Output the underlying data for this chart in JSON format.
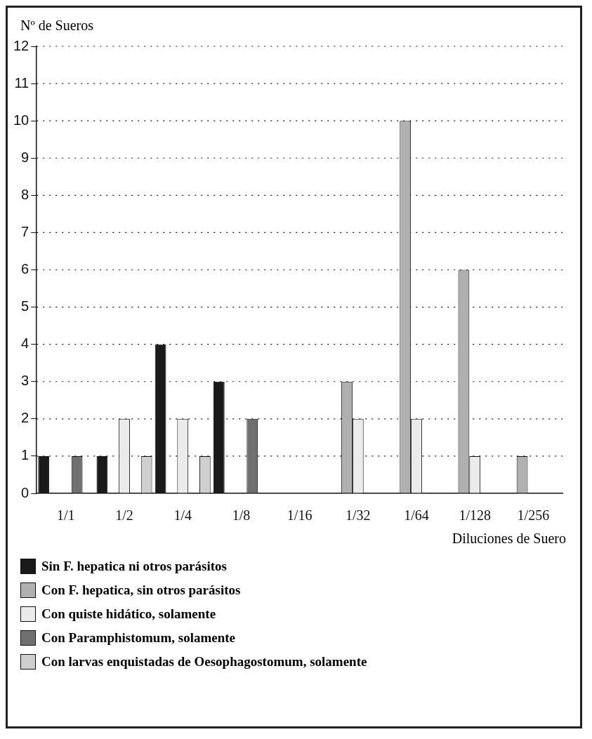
{
  "chart_data": {
    "type": "bar",
    "ylabel": "Nº de Sueros",
    "xlabel": "Diluciones de Suero",
    "categories": [
      "1/1",
      "1/2",
      "1/4",
      "1/8",
      "1/16",
      "1/32",
      "1/64",
      "1/128",
      "1/256"
    ],
    "series": [
      {
        "name": "Sin F. hepatica ni otros parásitos",
        "color": "#1a1a1a",
        "values": [
          1,
          1,
          4,
          3,
          0,
          0,
          0,
          0,
          0
        ]
      },
      {
        "name": "Con F. hepatica, sin otros parásitos",
        "color": "#b0b0b0",
        "values": [
          0,
          0,
          0,
          0,
          0,
          3,
          10,
          6,
          1
        ]
      },
      {
        "name": "Con quiste hidático, solamente",
        "color": "#ebebeb",
        "values": [
          0,
          2,
          2,
          0,
          0,
          2,
          2,
          1,
          0
        ]
      },
      {
        "name": "Con Paramphistomum, solamente",
        "color": "#707070",
        "values": [
          1,
          0,
          0,
          2,
          0,
          0,
          0,
          0,
          0
        ]
      },
      {
        "name": "Con larvas enquistadas de Oesophagostomum, solamente",
        "color": "#cfcfcf",
        "values": [
          0,
          1,
          1,
          0,
          0,
          0,
          0,
          0,
          0
        ]
      }
    ],
    "ylim": [
      0,
      12
    ],
    "yticks": [
      0,
      1,
      2,
      3,
      4,
      5,
      6,
      7,
      8,
      9,
      10,
      11,
      12
    ],
    "grid": "y",
    "legend": "bottom"
  }
}
